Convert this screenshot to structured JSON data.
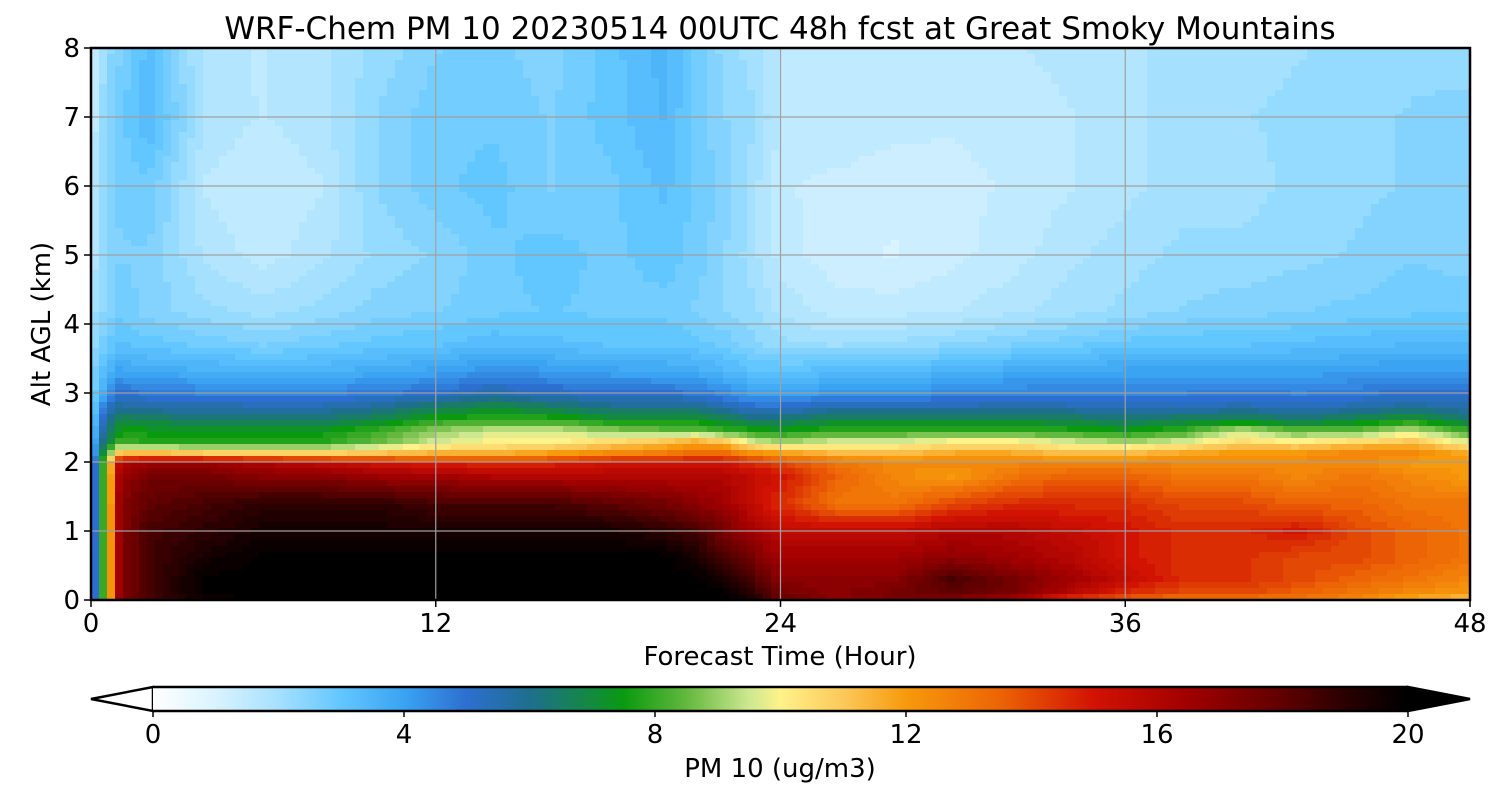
{
  "chart_data": {
    "type": "heatmap",
    "title": "WRF-Chem PM 10  20230514 00UTC 48h fcst at Great Smoky Mountains",
    "xlabel": "Forecast Time (Hour)",
    "ylabel": "Alt AGL (km)",
    "xlim": [
      0,
      48
    ],
    "ylim": [
      0,
      8
    ],
    "xticks": [
      0,
      12,
      24,
      36,
      48
    ],
    "yticks": [
      0,
      1,
      2,
      3,
      4,
      5,
      6,
      7,
      8
    ],
    "grid": true,
    "colorbar": {
      "label": "PM 10  (ug/m3)",
      "orientation": "horizontal",
      "placement": "bottom",
      "range": [
        0,
        20
      ],
      "ticks": [
        0,
        4,
        8,
        12,
        16,
        20
      ],
      "extend": "both",
      "stops": [
        {
          "value": 0,
          "color": "#ffffff"
        },
        {
          "value": 1,
          "color": "#d9f3ff"
        },
        {
          "value": 2,
          "color": "#a6e0ff"
        },
        {
          "value": 3,
          "color": "#62c6ff"
        },
        {
          "value": 4,
          "color": "#3aa3f2"
        },
        {
          "value": 5,
          "color": "#2d6fd0"
        },
        {
          "value": 6,
          "color": "#1e6f8e"
        },
        {
          "value": 7,
          "color": "#138a3e"
        },
        {
          "value": 7.5,
          "color": "#0a9a10"
        },
        {
          "value": 8.5,
          "color": "#63b83d"
        },
        {
          "value": 9.5,
          "color": "#cde890"
        },
        {
          "value": 10,
          "color": "#fff28a"
        },
        {
          "value": 11,
          "color": "#fcc85a"
        },
        {
          "value": 12,
          "color": "#f79a0c"
        },
        {
          "value": 13.5,
          "color": "#ec6405"
        },
        {
          "value": 15,
          "color": "#d21203"
        },
        {
          "value": 16.5,
          "color": "#a00000"
        },
        {
          "value": 18,
          "color": "#600000"
        },
        {
          "value": 19,
          "color": "#2a0000"
        },
        {
          "value": 20,
          "color": "#000000"
        }
      ]
    },
    "x": [
      0,
      0.5,
      1,
      2,
      4,
      6,
      8,
      10,
      12,
      14,
      16,
      18,
      20,
      21,
      22,
      23,
      24,
      26,
      28,
      30,
      32,
      34,
      36,
      38,
      40,
      42,
      44,
      46,
      48
    ],
    "y": [
      0,
      0.1,
      0.3,
      0.6,
      1.0,
      1.4,
      1.8,
      2.0,
      2.15,
      2.3,
      2.45,
      2.6,
      2.8,
      3.0,
      3.3,
      3.7,
      4.2,
      5.0,
      6.0,
      7.0,
      8.0
    ],
    "z": [
      [
        3.5,
        9.0,
        17.5,
        18.5,
        19.5,
        20.0,
        20.0,
        20.0,
        20.0,
        20.0,
        20.0,
        20.0,
        20.0,
        20.0,
        20.0,
        19.5,
        18.0,
        17.0,
        17.5,
        17.0,
        16.5,
        14.0,
        13.5,
        13.0,
        13.0,
        13.0,
        12.5,
        11.5,
        11.0
      ],
      [
        3.5,
        9.0,
        17.0,
        18.5,
        20.0,
        20.0,
        20.0,
        20.0,
        20.0,
        20.0,
        20.0,
        20.0,
        20.0,
        20.0,
        20.0,
        19.0,
        17.5,
        17.0,
        17.5,
        18.0,
        17.5,
        16.0,
        14.5,
        14.0,
        14.0,
        13.5,
        13.0,
        12.5,
        12.0
      ],
      [
        3.5,
        9.0,
        17.0,
        18.5,
        20.0,
        20.0,
        20.0,
        20.0,
        20.0,
        20.0,
        20.0,
        20.0,
        20.0,
        20.0,
        19.5,
        18.5,
        17.0,
        17.0,
        17.0,
        18.5,
        17.5,
        16.5,
        15.5,
        14.5,
        14.5,
        14.0,
        13.5,
        13.0,
        12.5
      ],
      [
        3.5,
        9.0,
        17.0,
        18.5,
        19.5,
        20.0,
        20.0,
        20.0,
        20.0,
        20.0,
        20.0,
        20.0,
        20.0,
        19.5,
        18.5,
        17.5,
        16.5,
        16.5,
        16.5,
        17.0,
        16.5,
        16.0,
        15.0,
        14.5,
        14.5,
        14.0,
        14.0,
        13.5,
        13.0
      ],
      [
        3.5,
        9.0,
        17.0,
        18.5,
        19.0,
        19.5,
        19.5,
        19.5,
        19.5,
        19.5,
        19.5,
        19.5,
        19.0,
        18.5,
        17.5,
        16.5,
        15.5,
        15.5,
        15.5,
        16.0,
        16.0,
        15.5,
        15.0,
        14.5,
        14.5,
        15.0,
        14.0,
        13.5,
        13.0
      ],
      [
        3.5,
        9.0,
        17.0,
        18.0,
        18.5,
        19.0,
        19.0,
        19.0,
        18.5,
        18.5,
        18.5,
        18.0,
        17.5,
        17.0,
        16.5,
        15.5,
        14.5,
        13.0,
        13.0,
        14.0,
        14.5,
        14.5,
        14.5,
        14.0,
        14.0,
        13.5,
        13.5,
        13.0,
        13.0
      ],
      [
        3.5,
        9.0,
        16.5,
        17.5,
        17.5,
        17.0,
        17.0,
        16.5,
        16.5,
        16.0,
        16.0,
        16.0,
        16.0,
        16.0,
        16.0,
        15.5,
        15.0,
        13.5,
        12.5,
        12.0,
        13.0,
        13.5,
        13.5,
        13.0,
        13.0,
        12.5,
        13.0,
        12.5,
        12.0
      ],
      [
        3.5,
        9.0,
        16.0,
        16.5,
        16.5,
        16.0,
        15.5,
        15.0,
        14.5,
        14.5,
        14.5,
        15.0,
        15.0,
        15.0,
        15.0,
        14.5,
        14.0,
        13.0,
        12.5,
        12.5,
        12.5,
        12.5,
        12.5,
        12.5,
        12.5,
        12.5,
        12.5,
        12.0,
        12.0
      ],
      [
        3.0,
        7.5,
        10.5,
        10.5,
        10.0,
        10.0,
        10.0,
        10.5,
        11.0,
        11.0,
        11.5,
        12.0,
        12.5,
        13.0,
        13.0,
        12.0,
        11.5,
        11.0,
        11.0,
        11.5,
        11.5,
        11.0,
        11.0,
        11.5,
        12.0,
        12.0,
        12.5,
        12.5,
        11.5
      ],
      [
        3.0,
        6.5,
        8.0,
        7.8,
        7.8,
        7.8,
        7.8,
        8.5,
        9.5,
        10.0,
        10.0,
        10.5,
        11.0,
        11.5,
        11.0,
        9.5,
        9.0,
        9.5,
        9.5,
        10.0,
        10.0,
        9.5,
        9.0,
        9.5,
        10.5,
        10.0,
        10.5,
        11.0,
        9.5
      ],
      [
        2.8,
        6.0,
        7.5,
        7.5,
        7.5,
        7.5,
        7.5,
        8.0,
        9.0,
        9.5,
        9.5,
        9.0,
        8.5,
        8.5,
        8.0,
        7.8,
        7.5,
        8.0,
        8.0,
        8.0,
        8.0,
        7.8,
        7.5,
        8.0,
        9.5,
        8.5,
        8.5,
        9.5,
        8.0
      ],
      [
        2.7,
        5.5,
        7.0,
        6.8,
        6.5,
        6.5,
        6.5,
        7.0,
        7.8,
        8.0,
        8.0,
        7.5,
        7.5,
        7.5,
        7.0,
        6.5,
        6.5,
        7.0,
        7.0,
        7.0,
        7.0,
        6.8,
        6.5,
        6.8,
        7.0,
        6.5,
        7.0,
        7.5,
        6.5
      ],
      [
        2.6,
        5.0,
        5.8,
        5.5,
        5.5,
        5.5,
        5.5,
        5.8,
        6.5,
        7.0,
        6.5,
        6.0,
        6.0,
        6.0,
        5.5,
        5.0,
        5.0,
        5.5,
        5.5,
        5.5,
        5.5,
        5.5,
        5.3,
        5.3,
        5.5,
        5.3,
        5.5,
        5.8,
        5.5
      ],
      [
        2.5,
        4.0,
        5.0,
        4.8,
        4.6,
        4.5,
        4.5,
        4.8,
        5.0,
        5.5,
        5.2,
        5.0,
        5.0,
        4.8,
        4.5,
        4.0,
        4.0,
        4.2,
        4.2,
        4.5,
        4.6,
        4.6,
        4.6,
        4.6,
        4.8,
        4.6,
        4.8,
        5.0,
        5.0
      ],
      [
        2.4,
        3.4,
        4.0,
        3.8,
        3.7,
        3.6,
        3.6,
        3.8,
        4.0,
        4.4,
        4.2,
        4.0,
        3.9,
        3.8,
        3.5,
        3.2,
        3.2,
        3.3,
        3.4,
        3.6,
        3.8,
        3.9,
        4.0,
        4.0,
        4.0,
        4.0,
        4.1,
        4.2,
        4.2
      ],
      [
        2.2,
        2.8,
        3.2,
        3.0,
        2.8,
        2.6,
        2.8,
        3.0,
        3.1,
        3.3,
        3.2,
        3.1,
        3.1,
        3.0,
        2.8,
        2.5,
        2.2,
        2.1,
        2.2,
        2.4,
        2.6,
        2.8,
        3.0,
        3.1,
        3.1,
        3.2,
        3.3,
        3.4,
        3.4
      ],
      [
        2.0,
        2.4,
        2.8,
        2.5,
        2.2,
        2.0,
        2.2,
        2.5,
        2.6,
        2.8,
        2.9,
        2.8,
        2.8,
        2.6,
        2.4,
        2.2,
        1.8,
        1.5,
        1.5,
        1.6,
        1.8,
        2.0,
        2.2,
        2.4,
        2.5,
        2.6,
        2.7,
        2.8,
        2.8
      ],
      [
        1.6,
        2.3,
        2.6,
        2.6,
        1.8,
        1.5,
        1.8,
        2.2,
        2.4,
        2.8,
        3.0,
        2.8,
        3.0,
        2.8,
        2.4,
        2.0,
        1.5,
        1.2,
        1.1,
        1.3,
        1.5,
        1.8,
        2.0,
        2.2,
        2.2,
        2.3,
        2.4,
        2.6,
        2.5
      ],
      [
        1.4,
        2.4,
        2.7,
        2.8,
        1.6,
        1.4,
        1.6,
        2.4,
        2.8,
        3.0,
        2.6,
        2.8,
        3.2,
        2.8,
        2.6,
        2.0,
        1.4,
        1.3,
        1.2,
        1.3,
        1.4,
        1.6,
        1.8,
        2.0,
        2.0,
        2.2,
        2.3,
        2.4,
        2.5
      ],
      [
        1.3,
        2.4,
        2.8,
        3.4,
        1.8,
        1.6,
        1.8,
        2.4,
        2.8,
        2.8,
        2.6,
        3.0,
        3.4,
        2.8,
        2.4,
        2.2,
        1.6,
        1.6,
        1.5,
        1.4,
        1.5,
        1.6,
        1.8,
        2.0,
        2.1,
        2.2,
        2.3,
        2.4,
        2.5
      ],
      [
        1.2,
        2.2,
        2.6,
        3.2,
        1.7,
        1.6,
        1.8,
        2.2,
        2.6,
        2.7,
        2.5,
        3.0,
        3.5,
        2.8,
        2.3,
        2.0,
        1.6,
        1.6,
        1.6,
        1.5,
        1.6,
        1.7,
        1.8,
        2.0,
        2.0,
        2.1,
        2.2,
        2.3,
        2.2
      ]
    ]
  }
}
